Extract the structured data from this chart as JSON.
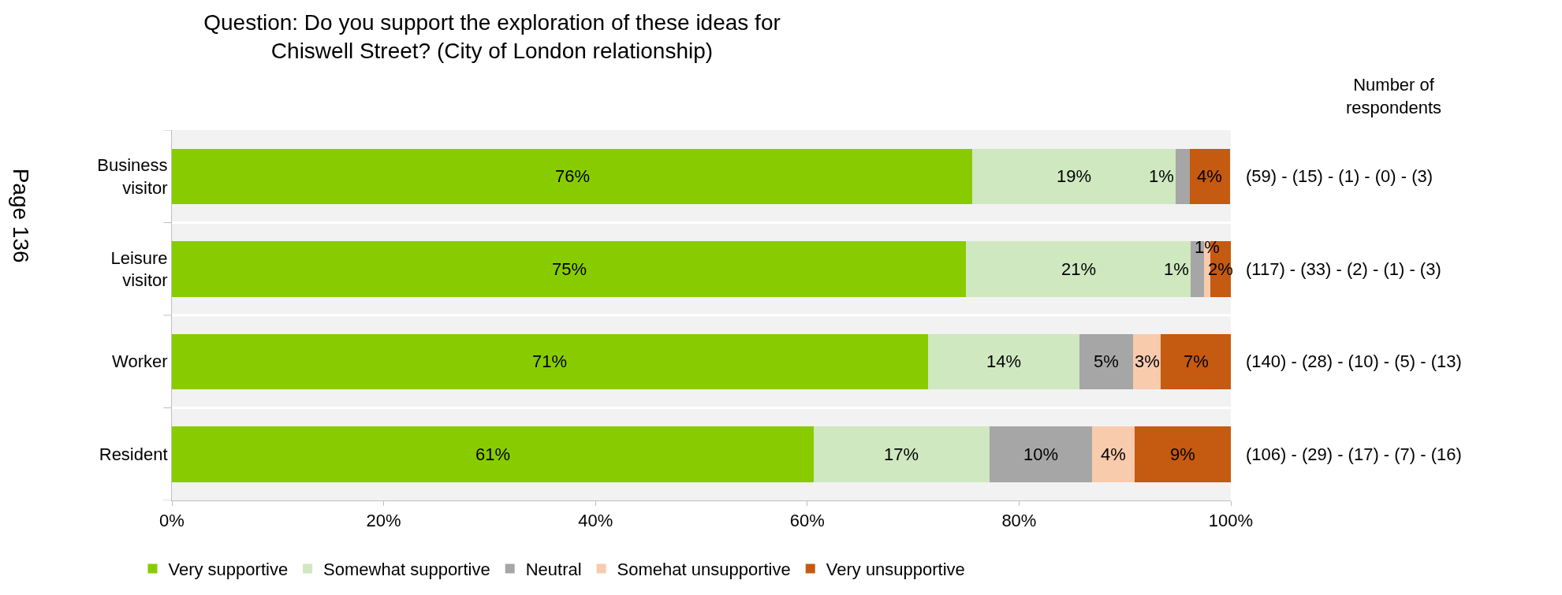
{
  "chart_data": {
    "type": "bar",
    "orientation": "horizontal",
    "stacked": true,
    "title": "Question: Do you support the exploration of these ideas for Chiswell Street? (City of London relationship)",
    "categories": [
      "Business visitor",
      "Leisure visitor",
      "Worker",
      "Resident"
    ],
    "series": [
      {
        "name": "Very supportive",
        "color": "#88cc00",
        "values": [
          75.6,
          75.0,
          71.4,
          60.6
        ],
        "value_labels": [
          "76%",
          "75%",
          "71%",
          "61%"
        ]
      },
      {
        "name": "Somewhat supportive",
        "color": "#cfe8c0",
        "values": [
          19.2,
          21.2,
          14.3,
          16.6
        ],
        "value_labels": [
          "19%",
          "21%",
          "14%",
          "17%"
        ]
      },
      {
        "name": "Neutral",
        "color": "#a6a6a6",
        "values": [
          1.3,
          1.3,
          5.1,
          9.7
        ],
        "value_labels": [
          "1%",
          "1%",
          "5%",
          "10%"
        ]
      },
      {
        "name": "Somehat unsupportive",
        "color": "#f8cbad",
        "values": [
          0,
          0.6,
          2.6,
          4.0
        ],
        "value_labels": [
          null,
          "1%",
          "3%",
          "4%"
        ]
      },
      {
        "name": "Very unsupportive",
        "color": "#c55a11",
        "values": [
          3.8,
          1.9,
          6.6,
          9.1
        ],
        "value_labels": [
          "4%",
          "2%",
          "7%",
          "9%"
        ]
      }
    ],
    "xlim": [
      0,
      100
    ],
    "xticks": [
      {
        "value": 0,
        "label": "0%"
      },
      {
        "value": 20,
        "label": "20%"
      },
      {
        "value": 40,
        "label": "40%"
      },
      {
        "value": 60,
        "label": "60%"
      },
      {
        "value": 80,
        "label": "80%"
      },
      {
        "value": 100,
        "label": "100%"
      }
    ],
    "grid": false,
    "legend": "bottom",
    "annotations": [
      "Number of respondents",
      "(59) - (15) - (1) - (0) - (3)",
      "(117) - (33) - (2) - (1) - (3)",
      "(140) - (28) - (10) - (5) - (13)",
      "(106) - (29) - (17) - (7) - (16)",
      "Page 136"
    ]
  }
}
